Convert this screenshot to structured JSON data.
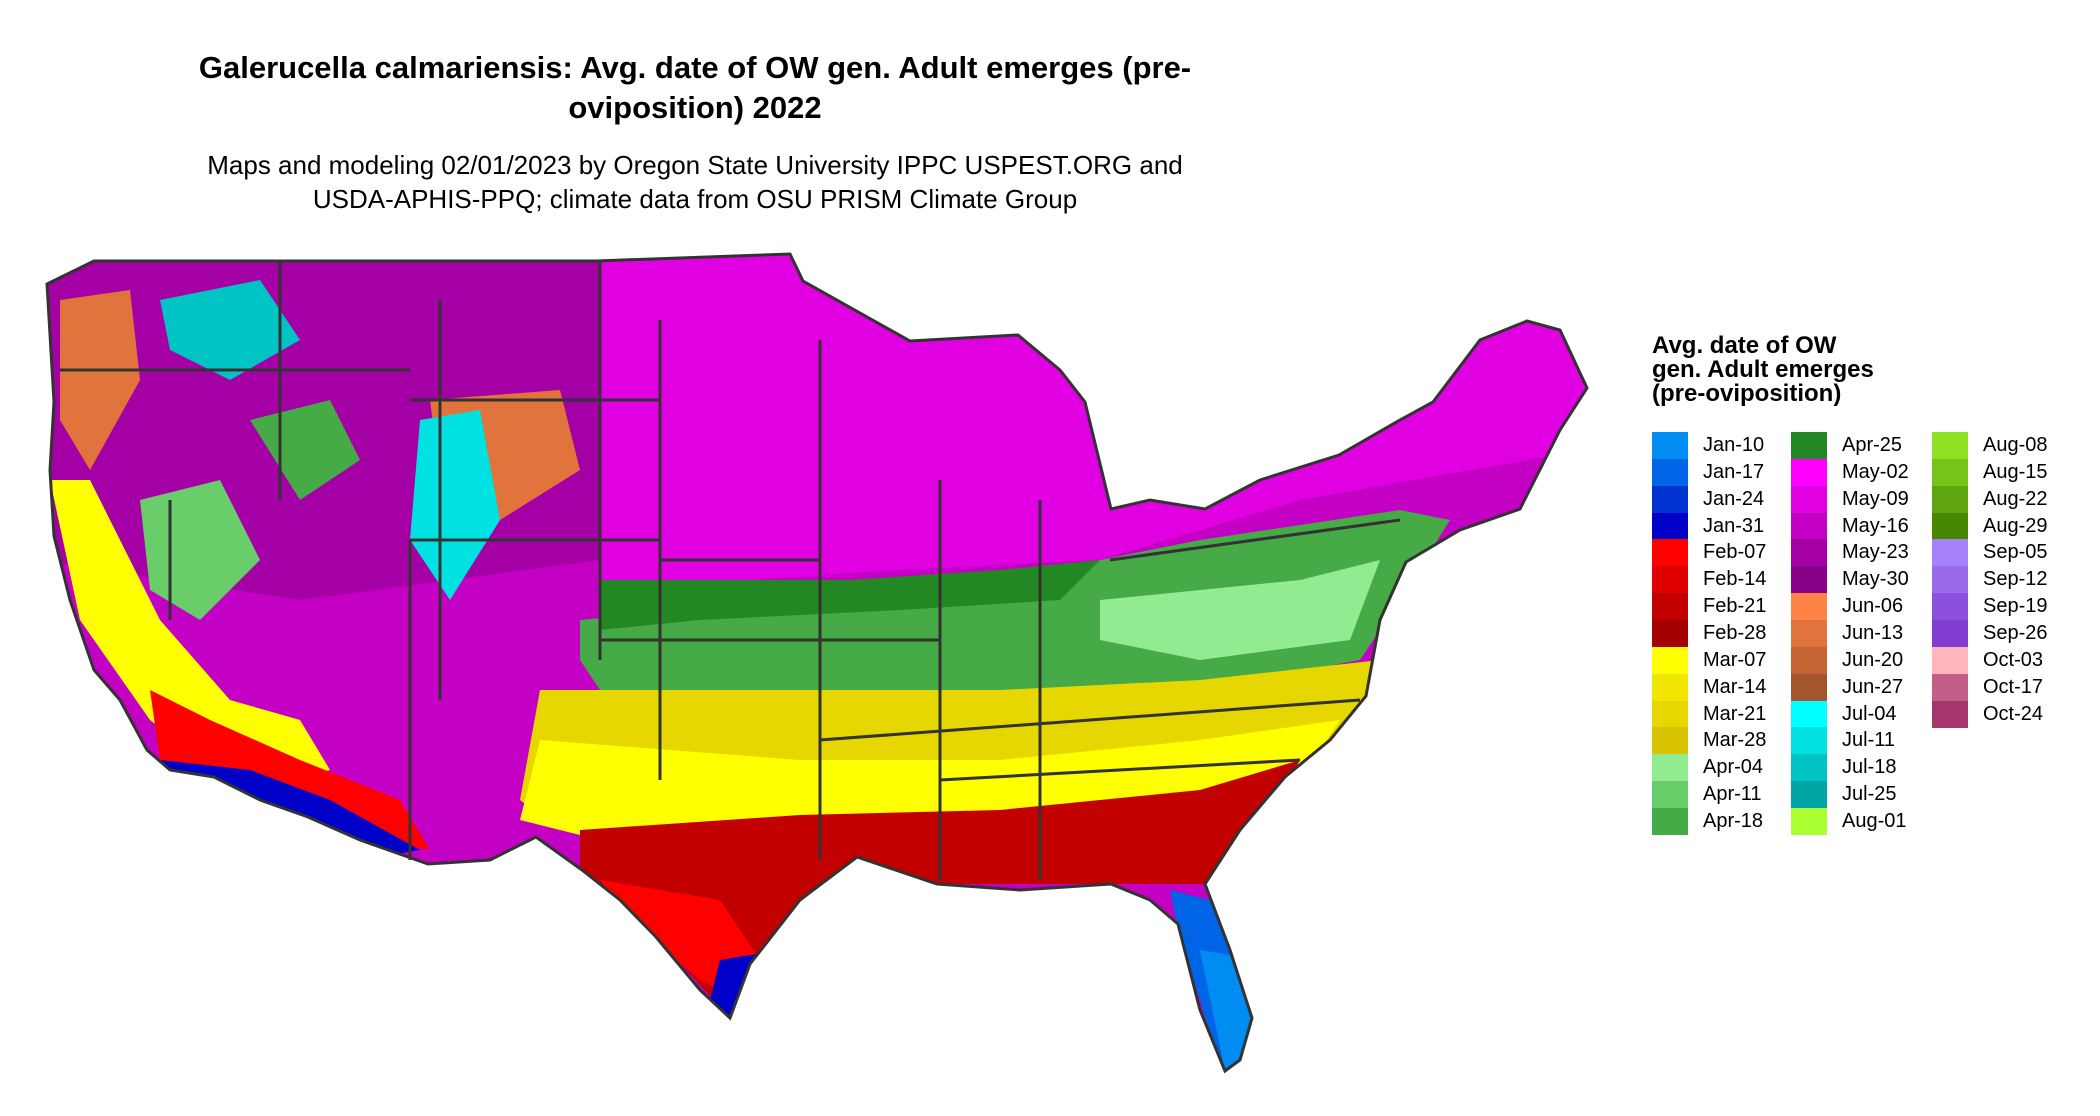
{
  "title": "Galerucella calmariensis: Avg. date of OW gen. Adult emerges (pre-oviposition) 2022",
  "subtitle_line1": "Maps and modeling 02/01/2023 by Oregon State University IPPC USPEST.ORG and",
  "subtitle_line2": "USDA-APHIS-PPQ; climate data from OSU PRISM Climate Group",
  "legend": {
    "title": "Avg. date of OW gen. Adult emerges (pre-oviposition)",
    "items": [
      {
        "label": "Jan-10",
        "color": "#008cf0"
      },
      {
        "label": "Jan-17",
        "color": "#0064e6"
      },
      {
        "label": "Jan-24",
        "color": "#0032d2"
      },
      {
        "label": "Jan-31",
        "color": "#0000c8"
      },
      {
        "label": "Feb-07",
        "color": "#ff0000"
      },
      {
        "label": "Feb-14",
        "color": "#e10000"
      },
      {
        "label": "Feb-21",
        "color": "#c30000"
      },
      {
        "label": "Feb-28",
        "color": "#a50000"
      },
      {
        "label": "Mar-07",
        "color": "#ffff00"
      },
      {
        "label": "Mar-14",
        "color": "#f0e600"
      },
      {
        "label": "Mar-21",
        "color": "#e6d700"
      },
      {
        "label": "Mar-28",
        "color": "#d7c300"
      },
      {
        "label": "Apr-04",
        "color": "#91eb91"
      },
      {
        "label": "Apr-11",
        "color": "#69cd69"
      },
      {
        "label": "Apr-18",
        "color": "#46aa46"
      },
      {
        "label": "Apr-25",
        "color": "#238723"
      },
      {
        "label": "May-02",
        "color": "#ff00ff"
      },
      {
        "label": "May-09",
        "color": "#e100e1"
      },
      {
        "label": "May-16",
        "color": "#c300c3"
      },
      {
        "label": "May-23",
        "color": "#a500a5"
      },
      {
        "label": "May-30",
        "color": "#870087"
      },
      {
        "label": "Jun-06",
        "color": "#ff8246"
      },
      {
        "label": "Jun-13",
        "color": "#e1733c"
      },
      {
        "label": "Jun-20",
        "color": "#c36432"
      },
      {
        "label": "Jun-27",
        "color": "#a5552d"
      },
      {
        "label": "Jul-04",
        "color": "#00ffff"
      },
      {
        "label": "Jul-11",
        "color": "#00e1e1"
      },
      {
        "label": "Jul-18",
        "color": "#00c3c3"
      },
      {
        "label": "Jul-25",
        "color": "#00a5a5"
      },
      {
        "label": "Aug-01",
        "color": "#aaff32"
      },
      {
        "label": "Aug-08",
        "color": "#91e123"
      },
      {
        "label": "Aug-15",
        "color": "#78c319"
      },
      {
        "label": "Aug-22",
        "color": "#5fa50f"
      },
      {
        "label": "Aug-29",
        "color": "#468700"
      },
      {
        "label": "Sep-05",
        "color": "#a582fa"
      },
      {
        "label": "Sep-12",
        "color": "#9b69eb"
      },
      {
        "label": "Sep-19",
        "color": "#8c50dc"
      },
      {
        "label": "Sep-26",
        "color": "#823cd2"
      },
      {
        "label": "Oct-03",
        "color": "#ffb4be"
      },
      {
        "label": "Oct-17",
        "color": "#c35f87"
      },
      {
        "label": "Oct-24",
        "color": "#a5376e"
      }
    ]
  }
}
